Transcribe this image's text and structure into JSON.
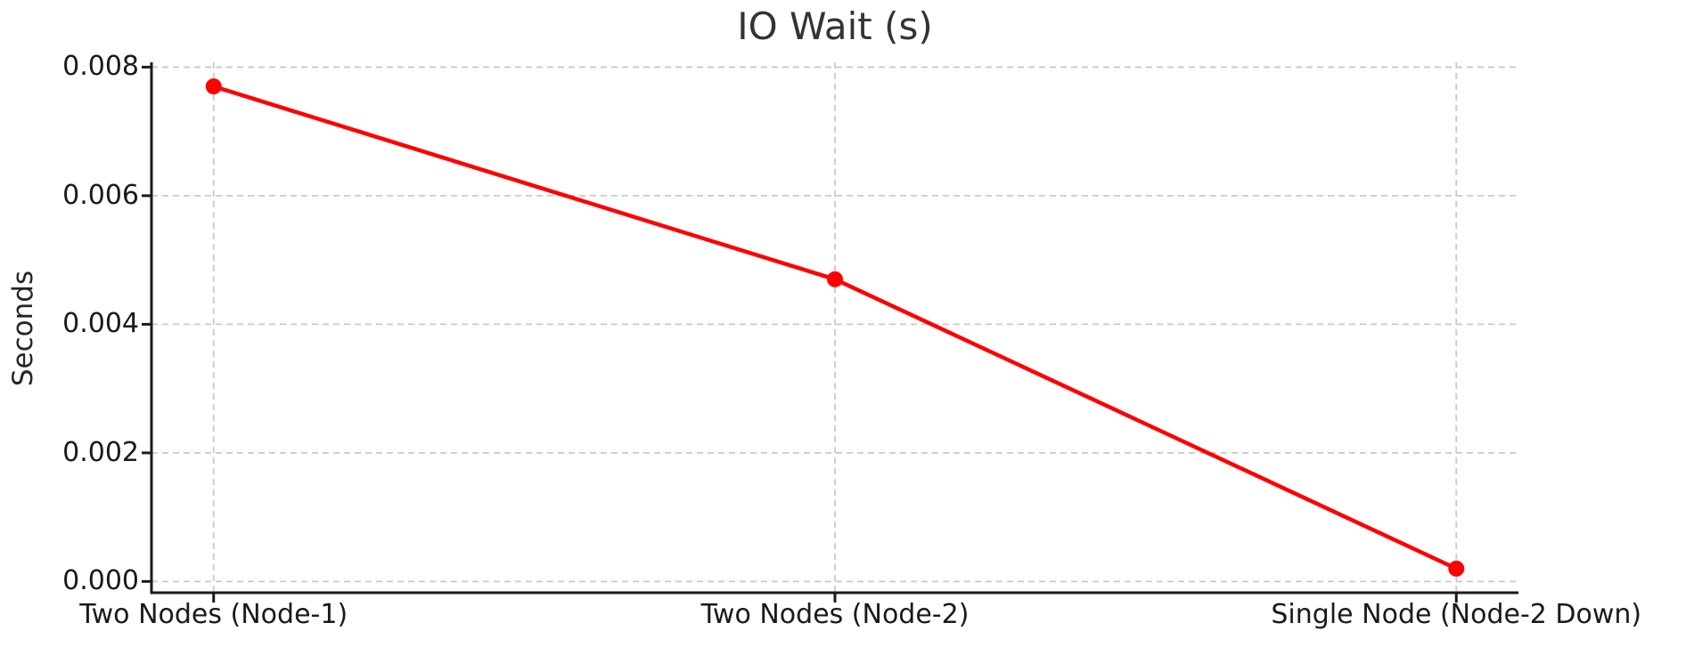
{
  "figure": {
    "background": "#ffffff",
    "text_color": "#262626",
    "spine_color": "#1a1a1a",
    "grid_color": "#c9c9c9"
  },
  "chart_data": {
    "type": "line",
    "title": "IO Wait (s)",
    "xlabel": "",
    "ylabel": "Seconds",
    "categories": [
      "Two Nodes (Node-1)",
      "Two Nodes (Node-2)",
      "Single Node (Node-2 Down)"
    ],
    "series": [
      {
        "name": "IO Wait",
        "color": "#ff0000",
        "values": [
          0.0077,
          0.0047,
          0.0002
        ],
        "marker": "circle"
      }
    ],
    "yticks": [
      {
        "value": 0.0,
        "label": "0.000"
      },
      {
        "value": 0.002,
        "label": "0.002"
      },
      {
        "value": 0.004,
        "label": "0.004"
      },
      {
        "value": 0.006,
        "label": "0.006"
      },
      {
        "value": 0.008,
        "label": "0.008"
      }
    ],
    "ylim": [
      -0.000175,
      0.008075
    ],
    "xlim": [
      -0.1,
      2.1
    ],
    "grid": true,
    "grid_style": "dashed",
    "legend": "none",
    "spines": [
      "left",
      "bottom"
    ]
  }
}
